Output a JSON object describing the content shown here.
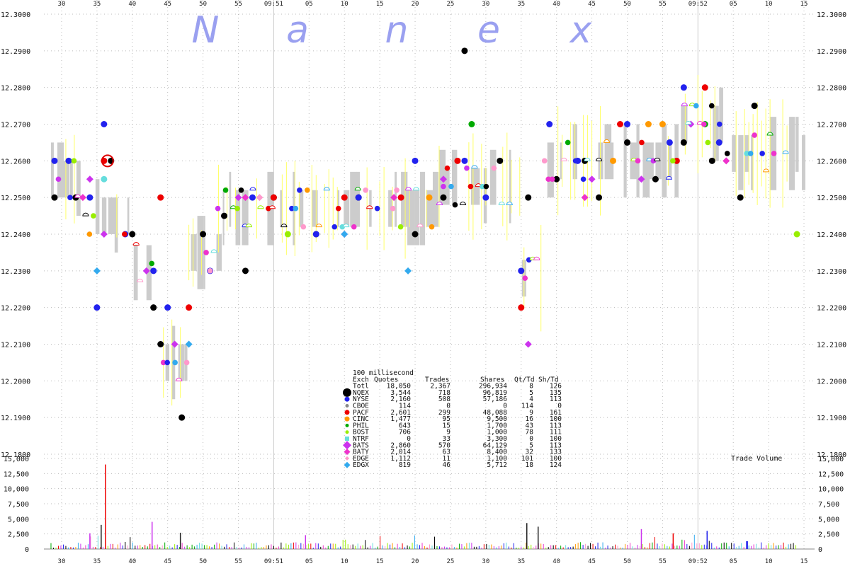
{
  "brand_letters": [
    "N",
    "a",
    "n",
    "e",
    "x"
  ],
  "chart_data": [
    {
      "type": "scatter",
      "title": "",
      "xlabel": "",
      "ylabel": "",
      "x_ticks": [
        "30",
        "35",
        "40",
        "45",
        "50",
        "55",
        "09:51",
        "05",
        "10",
        "15",
        "20",
        "25",
        "30",
        "35",
        "40",
        "45",
        "50",
        "55",
        "09:52",
        "05",
        "10",
        "15"
      ],
      "y_ticks": [
        "12.3000",
        "12.2900",
        "12.2800",
        "12.2700",
        "12.2600",
        "12.2500",
        "12.2400",
        "12.2300",
        "12.2200",
        "12.2100",
        "12.2000",
        "12.1900",
        "12.1800"
      ],
      "ylim": [
        12.18,
        12.3
      ],
      "xlim_seconds": [
        27.5,
        136.5
      ],
      "grid": true,
      "series": [
        {
          "name": "NQEX",
          "color": "#000000",
          "points": [
            [
              29,
              12.25
            ],
            [
              32,
              12.25
            ],
            [
              37,
              12.26
            ],
            [
              40,
              12.24
            ],
            [
              43,
              12.22
            ],
            [
              44,
              12.21
            ],
            [
              47,
              12.19
            ],
            [
              50,
              12.24
            ],
            [
              53,
              12.245
            ],
            [
              56,
              12.23
            ],
            [
              60,
              12.25
            ],
            [
              66,
              12.24
            ],
            [
              72,
              12.25
            ],
            [
              80,
              12.24
            ],
            [
              84,
              12.25
            ],
            [
              87,
              12.29
            ],
            [
              92,
              12.26
            ],
            [
              96,
              12.25
            ],
            [
              100,
              12.255
            ],
            [
              104,
              12.26
            ],
            [
              106,
              12.25
            ],
            [
              110,
              12.265
            ],
            [
              114,
              12.255
            ],
            [
              118,
              12.265
            ],
            [
              122,
              12.26
            ],
            [
              126,
              12.25
            ],
            [
              128,
              12.275
            ]
          ]
        },
        {
          "name": "NYSE",
          "color": "#2222ee",
          "points": [
            [
              29,
              12.26
            ],
            [
              31,
              12.26
            ],
            [
              34,
              12.25
            ],
            [
              35,
              12.22
            ],
            [
              36,
              12.27
            ],
            [
              39,
              12.24
            ],
            [
              43,
              12.23
            ],
            [
              45,
              12.22
            ],
            [
              51,
              12.23
            ],
            [
              57,
              12.25
            ],
            [
              66,
              12.24
            ],
            [
              72,
              12.25
            ],
            [
              80,
              12.26
            ],
            [
              87,
              12.26
            ],
            [
              90,
              12.25
            ],
            [
              95,
              12.23
            ],
            [
              99,
              12.27
            ],
            [
              103,
              12.26
            ],
            [
              110,
              12.27
            ],
            [
              116,
              12.265
            ],
            [
              118,
              12.28
            ],
            [
              123,
              12.265
            ]
          ]
        },
        {
          "name": "CBOE",
          "color": "#888888",
          "points": []
        },
        {
          "name": "PACF",
          "color": "#ee0000",
          "points": [
            [
              36,
              12.26
            ],
            [
              44,
              12.25
            ],
            [
              48,
              12.22
            ],
            [
              60,
              12.25
            ],
            [
              70,
              12.25
            ],
            [
              78,
              12.25
            ],
            [
              86,
              12.26
            ],
            [
              95,
              12.22
            ],
            [
              109,
              12.27
            ],
            [
              117,
              12.26
            ],
            [
              121,
              12.28
            ]
          ]
        },
        {
          "name": "CINC",
          "color": "#ff9900",
          "points": [
            [
              82,
              12.25
            ],
            [
              108,
              12.26
            ],
            [
              113,
              12.27
            ],
            [
              115,
              12.27
            ]
          ]
        },
        {
          "name": "PHIL",
          "color": "#00aa00",
          "points": [
            [
              88,
              12.27
            ],
            [
              121,
              12.27
            ]
          ]
        },
        {
          "name": "BOST",
          "color": "#99ee00",
          "points": [
            [
              62,
              12.24
            ],
            [
              134,
              12.24
            ]
          ]
        },
        {
          "name": "NTRF",
          "color": "#66dddd",
          "points": [
            [
              36,
              12.255
            ]
          ]
        },
        {
          "name": "BATS",
          "color": "#cc33ee",
          "points": [
            [
              34,
              12.255
            ],
            [
              36,
              12.24
            ],
            [
              42,
              12.23
            ],
            [
              46,
              12.21
            ],
            [
              55,
              12.25
            ],
            [
              70,
              12.24
            ],
            [
              84,
              12.255
            ],
            [
              96,
              12.21
            ],
            [
              105,
              12.255
            ],
            [
              112,
              12.255
            ],
            [
              119,
              12.27
            ]
          ]
        },
        {
          "name": "BATY",
          "color": "#ee33cc",
          "points": [
            [
              33,
              12.25
            ],
            [
              56,
              12.25
            ],
            [
              77,
              12.25
            ],
            [
              104,
              12.25
            ],
            [
              124,
              12.26
            ]
          ]
        },
        {
          "name": "EDGE",
          "color": "#ff99cc",
          "points": [
            [
              58,
              12.25
            ]
          ]
        },
        {
          "name": "EDGX",
          "color": "#33aaee",
          "points": [
            [
              35,
              12.23
            ],
            [
              48,
              12.21
            ],
            [
              70,
              12.24
            ],
            [
              79,
              12.23
            ]
          ]
        }
      ]
    },
    {
      "type": "bar",
      "title": "Trade Volume",
      "y_ticks": [
        "15,000",
        "12,500",
        "10,000",
        "7,500",
        "5,000",
        "2,500",
        "0"
      ],
      "ylim": [
        0,
        15000
      ],
      "peaks": [
        {
          "t": 36.2,
          "value": 14000,
          "color": "#ee0000"
        },
        {
          "t": 42.8,
          "value": 4500,
          "color": "#cc33ee"
        },
        {
          "t": 34.0,
          "value": 2600,
          "color": "#cc33ee"
        },
        {
          "t": 35.6,
          "value": 4000,
          "color": "#222222"
        },
        {
          "t": 46.8,
          "value": 2700,
          "color": "#222222"
        },
        {
          "t": 64.5,
          "value": 2300,
          "color": "#cc33ee"
        },
        {
          "t": 95.8,
          "value": 4300,
          "color": "#222222"
        },
        {
          "t": 97.4,
          "value": 3700,
          "color": "#222222"
        },
        {
          "t": 112.0,
          "value": 3300,
          "color": "#cc33ee"
        },
        {
          "t": 116.5,
          "value": 2600,
          "color": "#ee0000"
        },
        {
          "t": 121.3,
          "value": 3000,
          "color": "#2222ee"
        },
        {
          "t": 127.0,
          "value": 1300,
          "color": "#2222ee"
        }
      ]
    }
  ],
  "legend": {
    "interval": "100 millisecond",
    "headers": [
      "Exch",
      "Quotes",
      "Trades",
      "Shares",
      "Qt/Td",
      "Sh/Td"
    ],
    "rows": [
      {
        "exch": "Totl",
        "quotes": "18,050",
        "trades": "2,367",
        "shares": "296,934",
        "qt_td": "8",
        "sh_td": "126",
        "color": "#000000",
        "shape": "none"
      },
      {
        "exch": "NQEX",
        "quotes": "3,544",
        "trades": "718",
        "shares": "96,819",
        "qt_td": "5",
        "sh_td": "135",
        "color": "#000000",
        "shape": "circle-lg"
      },
      {
        "exch": "NYSE",
        "quotes": "2,160",
        "trades": "508",
        "shares": "57,186",
        "qt_td": "4",
        "sh_td": "113",
        "color": "#2222ee",
        "shape": "circle"
      },
      {
        "exch": "CBOE",
        "quotes": "114",
        "trades": "0",
        "shares": "0",
        "qt_td": "114",
        "sh_td": "0",
        "color": "#888888",
        "shape": "circle-sm"
      },
      {
        "exch": "PACF",
        "quotes": "2,601",
        "trades": "299",
        "shares": "48,088",
        "qt_td": "9",
        "sh_td": "161",
        "color": "#ee0000",
        "shape": "circle"
      },
      {
        "exch": "CINC",
        "quotes": "1,477",
        "trades": "95",
        "shares": "9,500",
        "qt_td": "16",
        "sh_td": "100",
        "color": "#ff9900",
        "shape": "circle"
      },
      {
        "exch": "PHIL",
        "quotes": "643",
        "trades": "15",
        "shares": "1,700",
        "qt_td": "43",
        "sh_td": "113",
        "color": "#00aa00",
        "shape": "circle-sm"
      },
      {
        "exch": "BOST",
        "quotes": "706",
        "trades": "9",
        "shares": "1,000",
        "qt_td": "78",
        "sh_td": "111",
        "color": "#99ee00",
        "shape": "circle-sm"
      },
      {
        "exch": "NTRF",
        "quotes": "0",
        "trades": "33",
        "shares": "3,300",
        "qt_td": "0",
        "sh_td": "100",
        "color": "#66dddd",
        "shape": "square"
      },
      {
        "exch": "BATS",
        "quotes": "2,860",
        "trades": "570",
        "shares": "64,129",
        "qt_td": "5",
        "sh_td": "113",
        "color": "#cc33ee",
        "shape": "diamond-lg"
      },
      {
        "exch": "BATY",
        "quotes": "2,014",
        "trades": "63",
        "shares": "8,400",
        "qt_td": "32",
        "sh_td": "133",
        "color": "#ee33cc",
        "shape": "diamond"
      },
      {
        "exch": "EDGE",
        "quotes": "1,112",
        "trades": "11",
        "shares": "1,100",
        "qt_td": "101",
        "sh_td": "100",
        "color": "#ff99cc",
        "shape": "diamond-sm"
      },
      {
        "exch": "EDGX",
        "quotes": "819",
        "trades": "46",
        "shares": "5,712",
        "qt_td": "18",
        "sh_td": "124",
        "color": "#33aaee",
        "shape": "diamond"
      }
    ]
  },
  "colors": {
    "grid": "#bbbbbb",
    "band": "#cccccc",
    "trade_line": "#ffff66",
    "brand": "#9aa0f0"
  }
}
